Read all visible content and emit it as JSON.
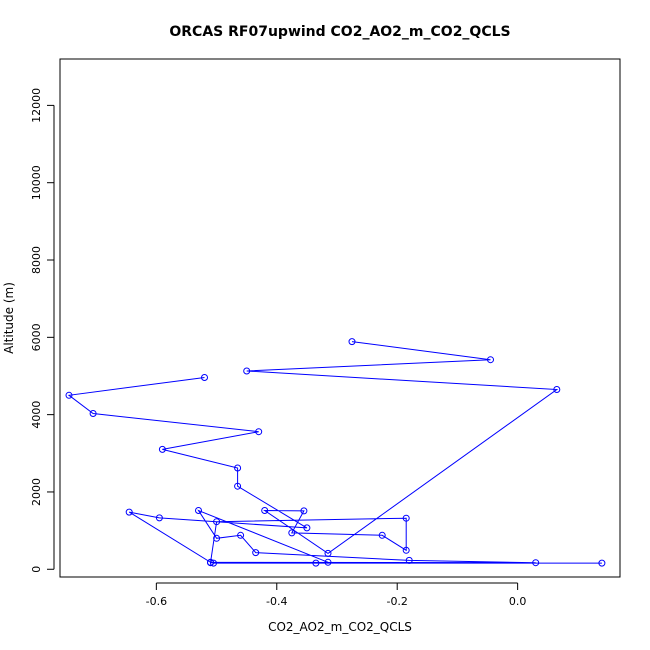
{
  "chart_data": {
    "type": "line",
    "title": "ORCAS RF07upwind CO2_AO2_m_CO2_QCLS",
    "xlabel": "CO2_AO2_m_CO2_QCLS",
    "ylabel": "Altitude (m)",
    "xlim": [
      -0.76,
      0.17
    ],
    "ylim": [
      -200,
      13200
    ],
    "x_ticks": [
      -0.6,
      -0.4,
      -0.2,
      0.0
    ],
    "x_tick_labels": [
      "-0.6",
      "-0.4",
      "-0.2",
      "0.0"
    ],
    "y_ticks": [
      0,
      2000,
      4000,
      6000,
      8000,
      10000,
      12000
    ],
    "y_tick_labels": [
      "0",
      "2000",
      "4000",
      "6000",
      "8000",
      "10000",
      "12000"
    ],
    "grid": false,
    "legend": "none",
    "series_color": "#0000ff",
    "series": [
      {
        "x": [
          -0.275,
          -0.045,
          -0.45,
          0.065,
          -0.315,
          -0.42,
          -0.355,
          -0.375,
          -0.225,
          -0.185,
          -0.185,
          -0.5,
          -0.51,
          0.14,
          -0.505,
          -0.335,
          -0.315,
          -0.53,
          -0.5,
          -0.46,
          -0.435,
          -0.18,
          0.03,
          -0.51,
          -0.645,
          -0.595,
          -0.35,
          -0.465,
          -0.465,
          -0.59,
          -0.43,
          -0.705,
          -0.745,
          -0.52
        ],
        "y": [
          5890,
          5420,
          5130,
          4650,
          410,
          1520,
          1510,
          940,
          880,
          490,
          1320,
          1230,
          170,
          160,
          160,
          160,
          180,
          1520,
          800,
          880,
          430,
          230,
          170,
          180,
          1480,
          1330,
          1070,
          2150,
          2620,
          3100,
          3560,
          4030,
          4500,
          4960
        ]
      }
    ]
  }
}
